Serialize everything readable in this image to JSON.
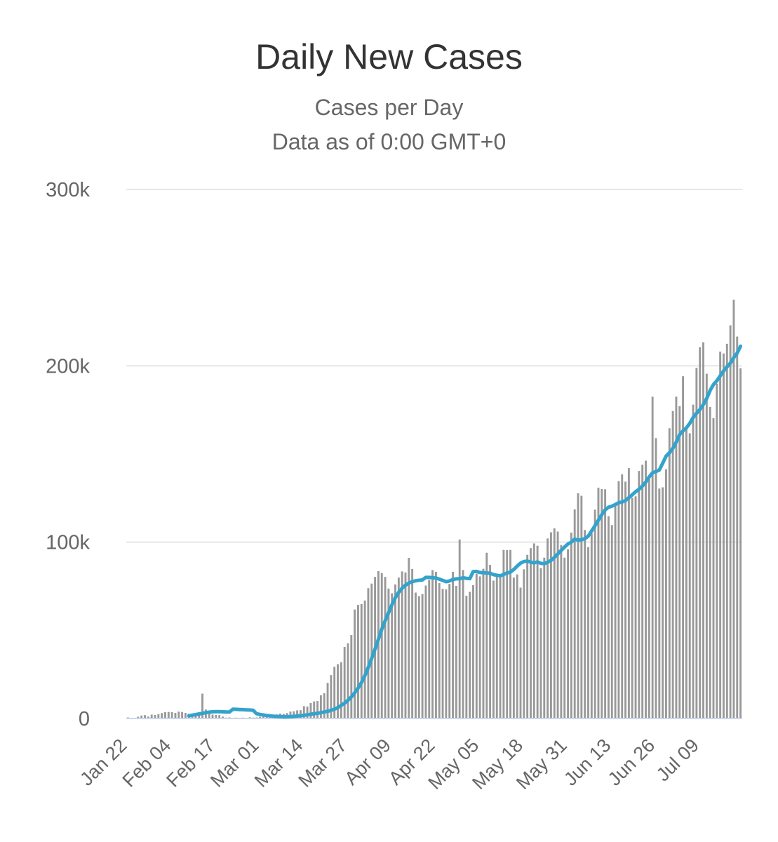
{
  "chart_data": {
    "type": "bar",
    "title": "Daily New Cases",
    "subtitle": "Cases per Day",
    "subtitle2": "Data as of 0:00 GMT+0",
    "ylim": [
      0,
      300000
    ],
    "yticks": [
      {
        "value": 0,
        "label": "0"
      },
      {
        "value": 100000,
        "label": "100k"
      },
      {
        "value": 200000,
        "label": "200k"
      },
      {
        "value": 300000,
        "label": "300k"
      }
    ],
    "xticks": [
      "Jan 22",
      "Feb 04",
      "Feb 17",
      "Mar 01",
      "Mar 14",
      "Mar 27",
      "Apr 09",
      "Apr 22",
      "May 05",
      "May 18",
      "May 31",
      "Jun 13",
      "Jun 26",
      "Jul 09"
    ],
    "x_start": "Jan 22",
    "x_end": "Jul 12",
    "colors": {
      "bar": "#999999",
      "line": "#33a3cc",
      "grid": "#e6e6e6",
      "baseline": "#ccd6eb"
    },
    "series": [
      {
        "type": "bar",
        "values": [
          600,
          100,
          300,
          1000,
          1700,
          1900,
          1100,
          2200,
          2000,
          2500,
          3100,
          3600,
          3700,
          3600,
          3200,
          3900,
          3700,
          3200,
          2700,
          2500,
          2100,
          2000,
          14100,
          5100,
          2700,
          2200,
          2000,
          1900,
          1100,
          500,
          600,
          400,
          500,
          300,
          500,
          400,
          700,
          500,
          600,
          1000,
          1300,
          1700,
          1800,
          1900,
          2300,
          2800,
          2600,
          3100,
          3900,
          4100,
          4600,
          4700,
          7000,
          6800,
          8800,
          9700,
          9900,
          13200,
          14300,
          20200,
          24600,
          29300,
          30800,
          31900,
          40600,
          42600,
          47300,
          61800,
          64400,
          64900,
          66900,
          73900,
          76500,
          80300,
          83600,
          82500,
          80300,
          73700,
          71000,
          76000,
          79900,
          83400,
          82800,
          91100,
          84800,
          71400,
          69400,
          70600,
          75400,
          78600,
          84200,
          83200,
          76800,
          73500,
          73200,
          76300,
          83200,
          75200,
          101500,
          84200,
          69600,
          71800,
          75600,
          82100,
          80600,
          84900,
          94000,
          87100,
          78200,
          80400,
          81500,
          95600,
          95500,
          95600,
          79900,
          81700,
          74200,
          84600,
          92800,
          96600,
          99300,
          98000,
          85300,
          91200,
          102100,
          105600,
          107800,
          106000,
          98400,
          91200,
          95900,
          105400,
          118600,
          127700,
          126300,
          106900,
          97200,
          104900,
          118400,
          130900,
          130100,
          130000,
          114700,
          109700,
          121500,
          134600,
          138400,
          134300,
          142000,
          125100,
          126000,
          140400,
          143900,
          146200,
          135700,
          182500,
          159000,
          130400,
          131100,
          141300,
          164600,
          174400,
          182500,
          177100,
          194100,
          164200,
          161700,
          178000,
          198800,
          210500,
          213300,
          195500,
          176700,
          170300,
          189900,
          208000,
          207000,
          212500,
          223000,
          237500,
          216600,
          198600
        ]
      },
      {
        "type": "line",
        "name": "",
        "values": [
          1500,
          1900,
          2200,
          2600,
          2900,
          3300,
          3600,
          3800,
          3900,
          3900,
          3800,
          3700,
          3700,
          5300,
          5200,
          5100,
          5000,
          4900,
          4800,
          4700,
          2700,
          2300,
          2000,
          1700,
          1500,
          1300,
          1200,
          1100,
          1000,
          1000,
          1100,
          1200,
          1400,
          1600,
          1800,
          2100,
          2400,
          2700,
          3000,
          3300,
          3700,
          4100,
          4600,
          5300,
          6200,
          7400,
          8700,
          10300,
          12200,
          14600,
          17300,
          20400,
          24300,
          28900,
          34000,
          39400,
          45000,
          50600,
          55500,
          60000,
          64500,
          68500,
          71500,
          73900,
          75600,
          76800,
          77600,
          78100,
          78400,
          78600,
          80000,
          80000,
          79800,
          79700,
          79000,
          78300,
          77600,
          78000,
          78800,
          79200,
          79200,
          79800,
          79500,
          79300,
          83300,
          83400,
          82800,
          82700,
          82500,
          82400,
          81600,
          81200,
          80900,
          81700,
          82500,
          83000,
          84500,
          86400,
          88100,
          89000,
          89300,
          88700,
          88200,
          88800,
          88000,
          87800,
          88600,
          89600,
          91400,
          93300,
          95300,
          97200,
          99000,
          100000,
          101700,
          101100,
          101400,
          102000,
          103400,
          106300,
          109300,
          112500,
          115600,
          118300,
          119800,
          120400,
          121300,
          122400,
          122800,
          123600,
          125200,
          126900,
          128600,
          130000,
          131800,
          134000,
          137000,
          139300,
          140100,
          140900,
          144700,
          148800,
          150700,
          153200,
          156700,
          161000,
          163100,
          164800,
          167400,
          170600,
          173100,
          175200,
          178000,
          181400,
          186000,
          189400,
          191500,
          194300,
          197100,
          199400,
          201500,
          204600,
          207200,
          211100
        ]
      }
    ]
  }
}
